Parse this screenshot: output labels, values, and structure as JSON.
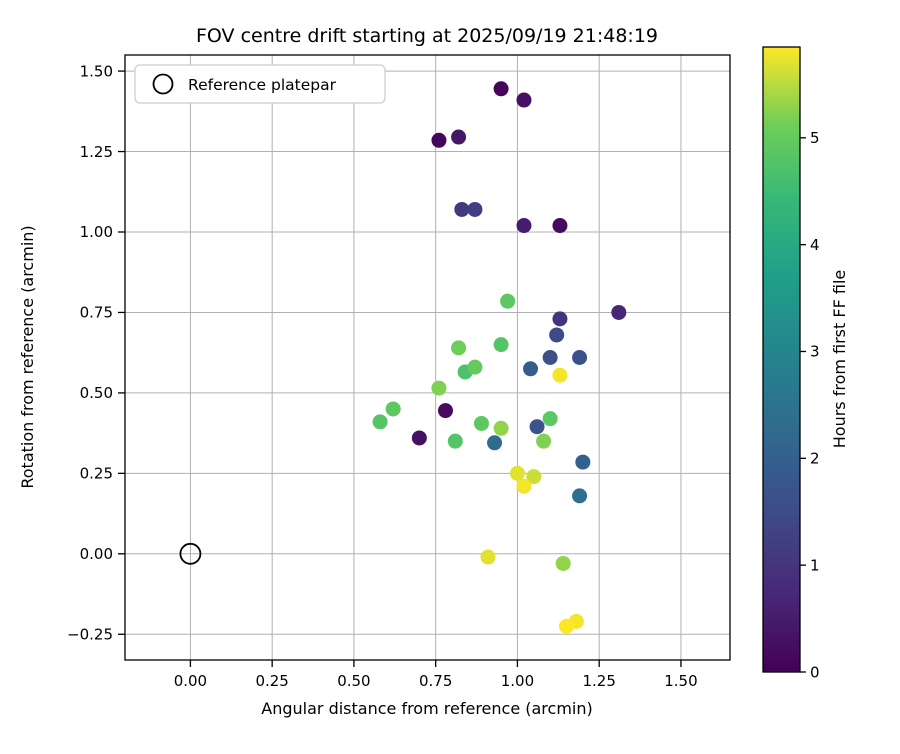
{
  "figure": {
    "background": "#ffffff"
  },
  "colors": {
    "grid": "#b0b0b0",
    "axis": "#000000",
    "text": "#000000",
    "legend_border": "#cccccc",
    "viridis_stops": [
      [
        0.0,
        "#440154"
      ],
      [
        0.125,
        "#482878"
      ],
      [
        0.25,
        "#3e4a89"
      ],
      [
        0.375,
        "#31688e"
      ],
      [
        0.5,
        "#26828e"
      ],
      [
        0.625,
        "#1f9e89"
      ],
      [
        0.75,
        "#35b779"
      ],
      [
        0.875,
        "#6ece58"
      ],
      [
        1.0,
        "#fde725"
      ]
    ]
  },
  "chart_data": {
    "type": "scatter",
    "title": "FOV centre drift starting at 2025/09/19 21:48:19",
    "xlabel": "Angular distance from reference (arcmin)",
    "ylabel": "Rotation from reference (arcmin)",
    "xlim": [
      -0.2,
      1.65
    ],
    "ylim": [
      -0.33,
      1.55
    ],
    "xticks": [
      0.0,
      0.25,
      0.5,
      0.75,
      1.0,
      1.25,
      1.5
    ],
    "yticks": [
      -0.25,
      0.0,
      0.25,
      0.5,
      0.75,
      1.0,
      1.25,
      1.5
    ],
    "grid": true,
    "legend": {
      "label": "Reference platepar",
      "position": "upper left",
      "marker": "open-circle"
    },
    "reference_point": {
      "x": 0.0,
      "y": 0.0
    },
    "colorbar": {
      "label": "Hours from first FF file",
      "vmin": 0,
      "vmax": 5.85,
      "ticks": [
        0,
        1,
        2,
        3,
        4,
        5
      ],
      "colormap": "viridis"
    },
    "points_format": [
      "angular_distance_arcmin",
      "rotation_arcmin",
      "hours_from_first_ff"
    ],
    "points": [
      [
        0.95,
        1.445,
        0.1
      ],
      [
        1.02,
        1.41,
        0.3
      ],
      [
        0.76,
        1.285,
        0.1
      ],
      [
        0.82,
        1.295,
        0.4
      ],
      [
        0.83,
        1.07,
        1.1
      ],
      [
        0.87,
        1.07,
        1.2
      ],
      [
        1.02,
        1.02,
        0.5
      ],
      [
        1.13,
        1.02,
        0.2
      ],
      [
        1.31,
        0.75,
        0.7
      ],
      [
        1.13,
        0.73,
        1.0
      ],
      [
        1.12,
        0.68,
        1.5
      ],
      [
        0.97,
        0.785,
        4.9
      ],
      [
        0.95,
        0.65,
        4.8
      ],
      [
        0.82,
        0.64,
        5.1
      ],
      [
        1.1,
        0.61,
        1.6
      ],
      [
        1.19,
        0.61,
        1.6
      ],
      [
        1.04,
        0.575,
        1.9
      ],
      [
        1.13,
        0.555,
        5.8
      ],
      [
        0.84,
        0.565,
        4.7
      ],
      [
        0.87,
        0.58,
        5.0
      ],
      [
        0.76,
        0.515,
        5.2
      ],
      [
        0.62,
        0.45,
        4.9
      ],
      [
        0.58,
        0.41,
        4.8
      ],
      [
        0.78,
        0.445,
        0.2
      ],
      [
        0.7,
        0.36,
        0.3
      ],
      [
        0.81,
        0.35,
        4.8
      ],
      [
        0.89,
        0.405,
        4.9
      ],
      [
        0.95,
        0.39,
        5.3
      ],
      [
        0.93,
        0.345,
        2.3
      ],
      [
        1.06,
        0.395,
        1.7
      ],
      [
        1.1,
        0.42,
        4.9
      ],
      [
        1.08,
        0.35,
        5.2
      ],
      [
        1.2,
        0.285,
        2.0
      ],
      [
        1.0,
        0.25,
        5.7
      ],
      [
        1.05,
        0.24,
        5.6
      ],
      [
        1.02,
        0.21,
        5.8
      ],
      [
        1.19,
        0.18,
        2.4
      ],
      [
        0.91,
        -0.01,
        5.7
      ],
      [
        1.14,
        -0.03,
        5.3
      ],
      [
        1.18,
        -0.21,
        5.8
      ],
      [
        1.15,
        -0.225,
        5.9
      ]
    ]
  }
}
